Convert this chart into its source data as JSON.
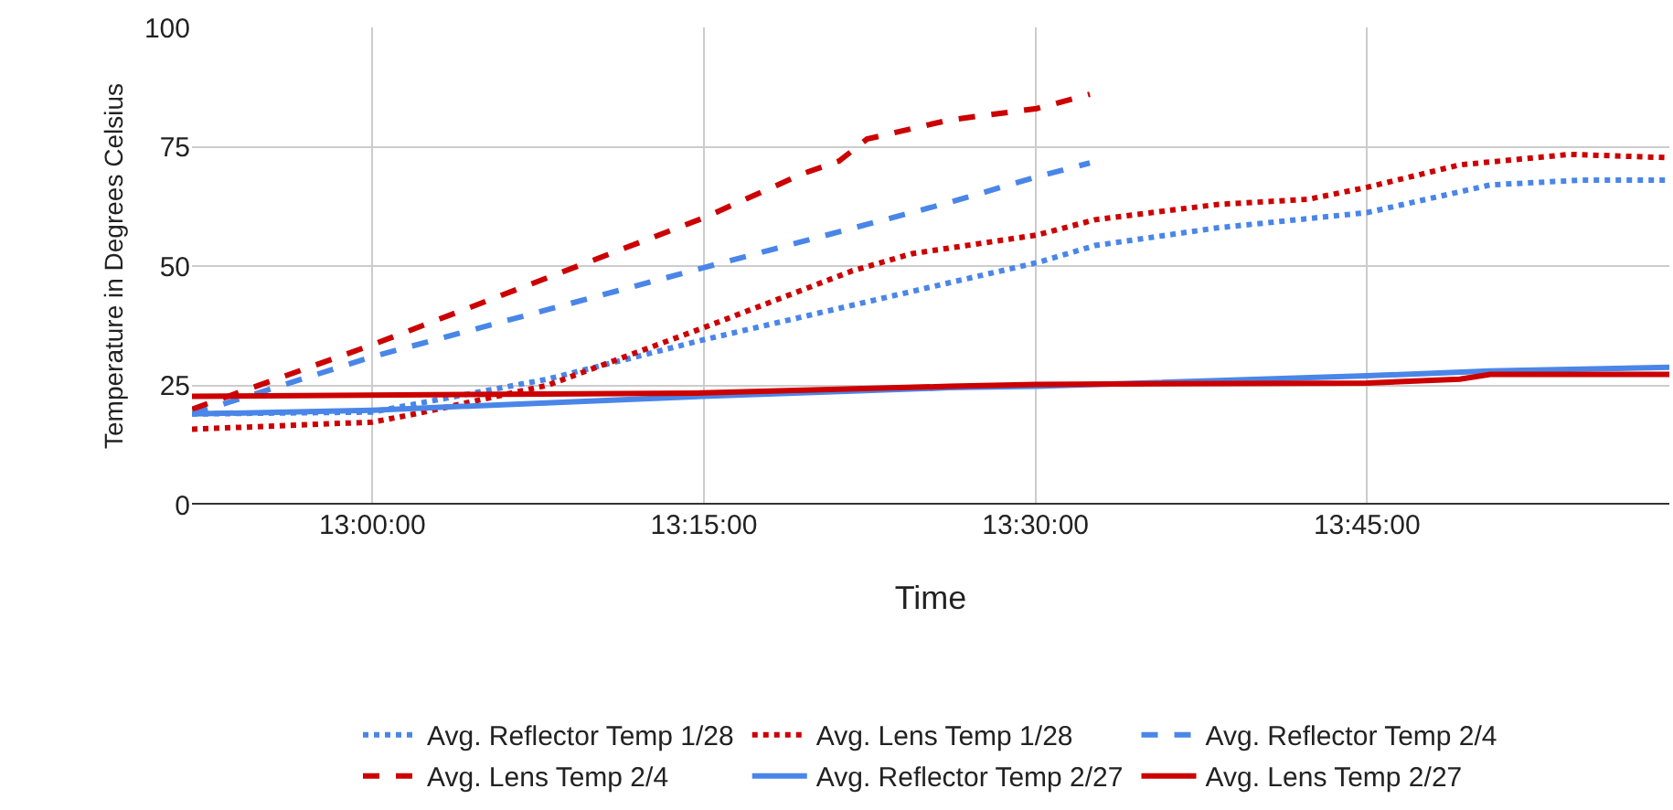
{
  "chart_data": {
    "type": "line",
    "xlabel": "Time",
    "ylabel": "Temperature in Degrees Celsius",
    "xlim": [
      12.864,
      13.978
    ],
    "xticks": [
      {
        "value": 13,
        "label": "13:00:00"
      },
      {
        "value": 13.25,
        "label": "13:15:00"
      },
      {
        "value": 13.5,
        "label": "13:30:00"
      },
      {
        "value": 13.75,
        "label": "13:45:00"
      }
    ],
    "ylim": [
      0,
      100
    ],
    "yticks": [
      0,
      25,
      50,
      75,
      100
    ],
    "grid": true,
    "legend": "bottom",
    "marker": "none",
    "series": [
      {
        "name": "Avg. Reflector Temp 1/28",
        "color": "#4a86e8",
        "line_style": "dotted",
        "x": [
          12.864,
          13.0,
          13.132,
          13.249,
          13.435,
          13.501,
          13.545,
          13.637,
          13.75,
          13.843,
          13.912,
          13.978
        ],
        "values": [
          19,
          19.4,
          26.3,
          34.5,
          46.5,
          50.7,
          54.3,
          58,
          61.2,
          67,
          68,
          68
        ]
      },
      {
        "name": "Avg. Lens Temp 1/28",
        "color": "#cc0000",
        "line_style": "dotted",
        "x": [
          12.864,
          13.0,
          13.032,
          13.132,
          13.249,
          13.362,
          13.407,
          13.501,
          13.545,
          13.637,
          13.706,
          13.75,
          13.82,
          13.903,
          13.978
        ],
        "values": [
          15.8,
          17.3,
          19,
          25,
          37,
          49,
          52.6,
          56.5,
          59.7,
          62.9,
          64,
          66.5,
          71.2,
          73.4,
          72.7
        ]
      },
      {
        "name": "Avg. Reflector Temp 2/4",
        "color": "#4a86e8",
        "line_style": "dashed",
        "x": [
          12.864,
          13.0,
          13.249,
          13.435,
          13.501,
          13.541
        ],
        "values": [
          19,
          31,
          49.6,
          63.3,
          68.7,
          71.6
        ]
      },
      {
        "name": "Avg. Lens Temp 2/4",
        "color": "#cc0000",
        "line_style": "dashed",
        "x": [
          12.864,
          13.0,
          13.249,
          13.325,
          13.352,
          13.373,
          13.435,
          13.501,
          13.541
        ],
        "values": [
          20,
          33.5,
          60,
          69.4,
          72,
          76.6,
          80.6,
          83,
          86
        ]
      },
      {
        "name": "Avg. Reflector Temp 2/27",
        "color": "#4a86e8",
        "line_style": "solid",
        "x": [
          12.864,
          13.0,
          13.249,
          13.435,
          13.501,
          13.75,
          13.843,
          13.978
        ],
        "values": [
          19,
          19.8,
          22.7,
          24.5,
          24.8,
          27,
          28,
          28.8
        ]
      },
      {
        "name": "Avg. Lens Temp 2/27",
        "color": "#cc0000",
        "line_style": "solid",
        "x": [
          12.864,
          13.249,
          13.435,
          13.501,
          13.75,
          13.82,
          13.843,
          13.978
        ],
        "values": [
          22.7,
          23.4,
          24.8,
          25.2,
          25.5,
          26.3,
          27.3,
          27.3
        ]
      }
    ]
  }
}
